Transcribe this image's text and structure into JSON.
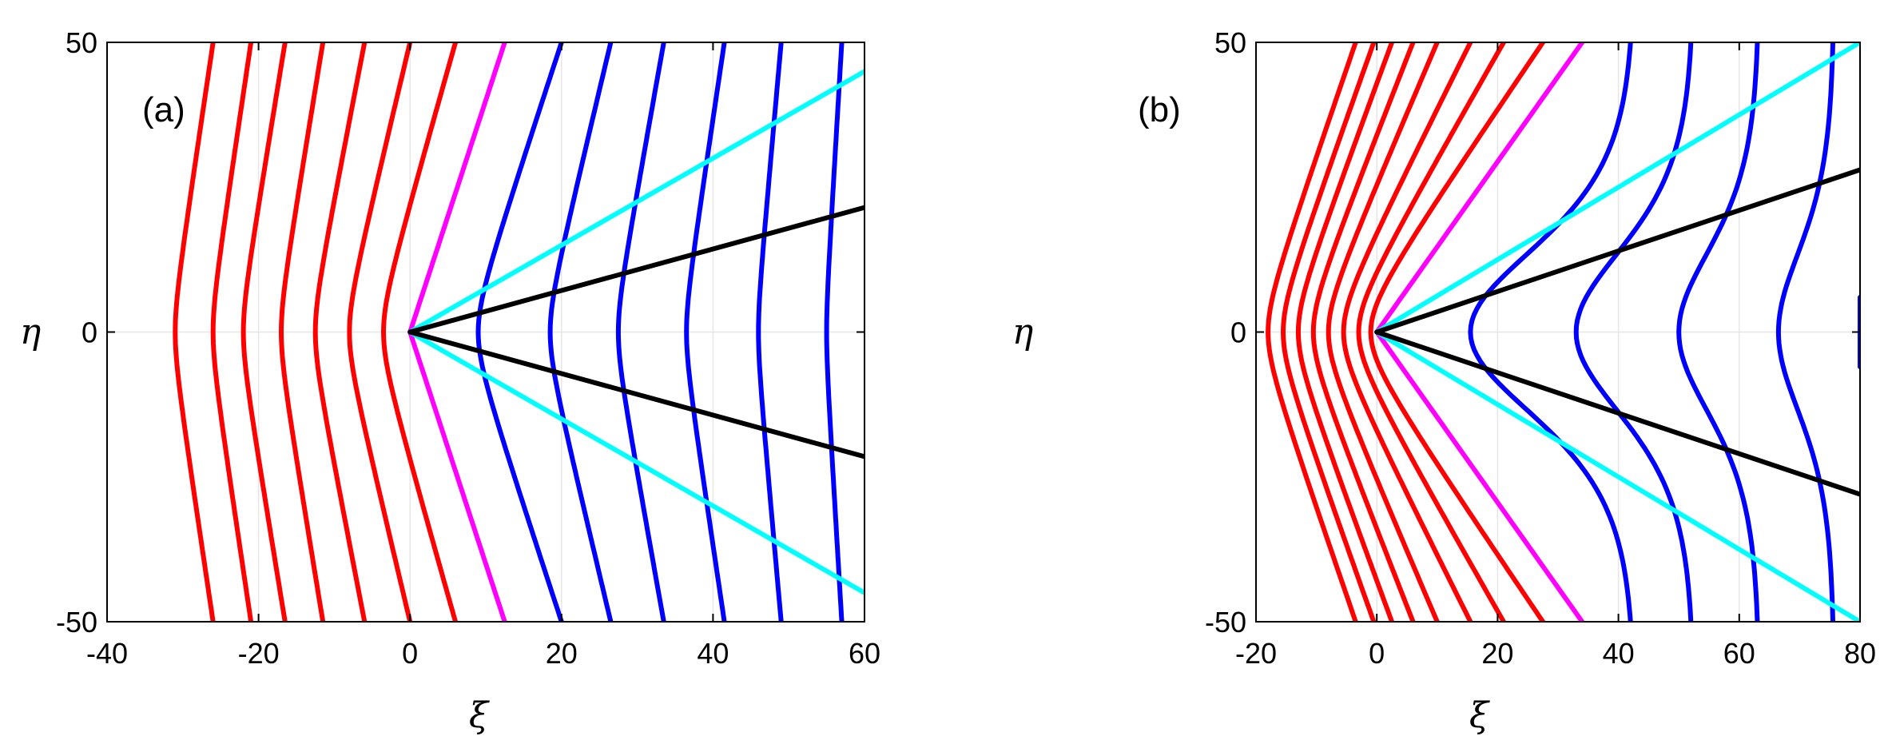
{
  "chart_data": [
    {
      "type": "line",
      "panel_label": "(a)",
      "xlabel": "ξ",
      "ylabel": "η",
      "xlim": [
        -40,
        60
      ],
      "ylim": [
        -50,
        50
      ],
      "xticks": [
        -40,
        -20,
        0,
        20,
        40,
        60
      ],
      "yticks": [
        -50,
        0,
        50
      ],
      "grid": true,
      "series": [
        {
          "color": "#ff0000",
          "kind": "curve",
          "vertex_x": -31,
          "x_at_y50": -26
        },
        {
          "color": "#ff0000",
          "kind": "curve",
          "vertex_x": -26,
          "x_at_y50": -21
        },
        {
          "color": "#ff0000",
          "kind": "curve",
          "vertex_x": -22,
          "x_at_y50": -16.5
        },
        {
          "color": "#ff0000",
          "kind": "curve",
          "vertex_x": -17,
          "x_at_y50": -11.5
        },
        {
          "color": "#ff0000",
          "kind": "curve",
          "vertex_x": -12.5,
          "x_at_y50": -6
        },
        {
          "color": "#ff0000",
          "kind": "curve",
          "vertex_x": -8,
          "x_at_y50": 0
        },
        {
          "color": "#ff0000",
          "kind": "curve",
          "vertex_x": -3.5,
          "x_at_y50": 6
        },
        {
          "color": "#ff00ff",
          "kind": "line",
          "vertex_x": 0,
          "x_at_y50": 12.5
        },
        {
          "color": "#0000ff",
          "kind": "curve",
          "vertex_x": 9,
          "x_at_y50": 20
        },
        {
          "color": "#0000ff",
          "kind": "curve",
          "vertex_x": 18.5,
          "x_at_y50": 26.5
        },
        {
          "color": "#0000ff",
          "kind": "curve",
          "vertex_x": 27.5,
          "x_at_y50": 33.5
        },
        {
          "color": "#0000ff",
          "kind": "curve",
          "vertex_x": 36.5,
          "x_at_y50": 41.5
        },
        {
          "color": "#0000ff",
          "kind": "curve",
          "vertex_x": 46,
          "x_at_y50": 49
        },
        {
          "color": "#0000ff",
          "kind": "curve",
          "vertex_x": 55,
          "x_at_y50": 57
        },
        {
          "color": "#00ffff",
          "kind": "ray",
          "from": [
            0,
            0
          ],
          "to": [
            60,
            45
          ]
        },
        {
          "color": "#00ffff",
          "kind": "ray",
          "from": [
            0,
            0
          ],
          "to": [
            60,
            -45
          ]
        },
        {
          "color": "#000000",
          "kind": "ray",
          "from": [
            0,
            0
          ],
          "to": [
            60,
            21.5
          ]
        },
        {
          "color": "#000000",
          "kind": "ray",
          "from": [
            0,
            0
          ],
          "to": [
            60,
            -21.5
          ]
        }
      ]
    },
    {
      "type": "line",
      "panel_label": "(b)",
      "xlabel": "ξ",
      "ylabel": "η",
      "xlim": [
        -20,
        80
      ],
      "ylim": [
        -50,
        50
      ],
      "xticks": [
        -20,
        0,
        20,
        40,
        60,
        80
      ],
      "yticks": [
        -50,
        0,
        50
      ],
      "grid": true,
      "series": [
        {
          "color": "#ff0000",
          "kind": "curve",
          "vertex_x": -18,
          "x_at_y50": -3.5
        },
        {
          "color": "#ff0000",
          "kind": "curve",
          "vertex_x": -15.5,
          "x_at_y50": -0.5
        },
        {
          "color": "#ff0000",
          "kind": "curve",
          "vertex_x": -13,
          "x_at_y50": 2.5
        },
        {
          "color": "#ff0000",
          "kind": "curve",
          "vertex_x": -10.5,
          "x_at_y50": 6
        },
        {
          "color": "#ff0000",
          "kind": "curve",
          "vertex_x": -8,
          "x_at_y50": 10
        },
        {
          "color": "#ff0000",
          "kind": "curve",
          "vertex_x": -5.5,
          "x_at_y50": 15.5
        },
        {
          "color": "#ff0000",
          "kind": "curve",
          "vertex_x": -3,
          "x_at_y50": 21
        },
        {
          "color": "#ff0000",
          "kind": "curve",
          "vertex_x": -1,
          "x_at_y50": 27.5
        },
        {
          "color": "#ff00ff",
          "kind": "line",
          "vertex_x": 0,
          "x_at_y50": 34
        },
        {
          "color": "#0000ff",
          "kind": "sigmoid",
          "vertex_x": 15.5,
          "x_at_y50": 42
        },
        {
          "color": "#0000ff",
          "kind": "sigmoid",
          "vertex_x": 33,
          "x_at_y50": 52
        },
        {
          "color": "#0000ff",
          "kind": "sigmoid",
          "vertex_x": 50,
          "x_at_y50": 63
        },
        {
          "color": "#0000ff",
          "kind": "sigmoid",
          "vertex_x": 66.5,
          "x_at_y50": 75.5
        },
        {
          "color": "#0000ff",
          "kind": "segment",
          "from": [
            80,
            6
          ],
          "to": [
            80,
            -6
          ]
        },
        {
          "color": "#00ffff",
          "kind": "ray",
          "from": [
            0,
            0
          ],
          "to": [
            80,
            50
          ]
        },
        {
          "color": "#00ffff",
          "kind": "ray",
          "from": [
            0,
            0
          ],
          "to": [
            80,
            -50
          ]
        },
        {
          "color": "#000000",
          "kind": "ray",
          "from": [
            0,
            0
          ],
          "to": [
            80,
            28
          ]
        },
        {
          "color": "#000000",
          "kind": "ray",
          "from": [
            0,
            0
          ],
          "to": [
            80,
            -28
          ]
        }
      ]
    }
  ]
}
